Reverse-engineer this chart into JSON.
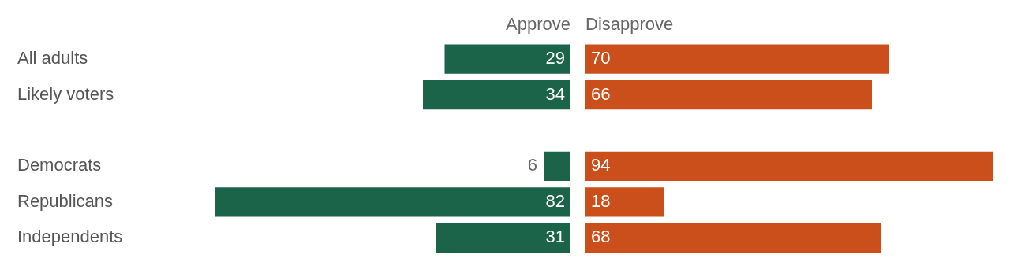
{
  "chart_data": [
    {
      "type": "bar",
      "orientation": "horizontal",
      "title": "Approve",
      "categories": [
        "All adults",
        "Likely voters",
        null,
        "Democrats",
        "Republicans",
        "Independents"
      ],
      "values": [
        29,
        34,
        null,
        6,
        82,
        31
      ],
      "color": "#1b6449",
      "data_labels": true
    },
    {
      "type": "bar",
      "orientation": "horizontal",
      "title": "Disapprove",
      "categories": [
        null,
        null,
        null,
        null,
        null,
        null
      ],
      "values": [
        70,
        66,
        null,
        94,
        18,
        68
      ],
      "color": "#cb4f1b",
      "data_labels": true,
      "tick_labels": false
    }
  ]
}
